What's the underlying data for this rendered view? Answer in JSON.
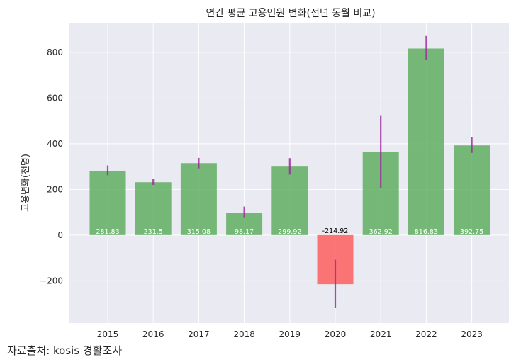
{
  "chart_data": {
    "type": "bar",
    "title": "연간 평균 고용인원 변화(전년 동월 비교)",
    "xlabel": "",
    "ylabel": "고용변화(천명)",
    "categories": [
      "2015",
      "2016",
      "2017",
      "2018",
      "2019",
      "2020",
      "2021",
      "2022",
      "2023"
    ],
    "values": [
      281.83,
      231.5,
      315.08,
      98.17,
      299.92,
      -214.92,
      362.92,
      816.83,
      392.75
    ],
    "value_labels": [
      "281.83",
      "231.5",
      "315.08",
      "98.17",
      "299.92",
      "-214.92",
      "362.92",
      "816.83",
      "392.75"
    ],
    "error_low": [
      262,
      220,
      292,
      75,
      265,
      -320,
      205,
      768,
      360
    ],
    "error_high": [
      305,
      245,
      338,
      125,
      337,
      -108,
      522,
      872,
      428
    ],
    "ylim": [
      -385,
      930
    ],
    "yticks": [
      -200,
      0,
      200,
      400,
      600,
      800
    ],
    "ytick_labels": [
      "−200",
      "0",
      "200",
      "400",
      "600",
      "800"
    ],
    "grid": true,
    "colors": {
      "positive": "#4ca64c",
      "negative": "#ff4c4c",
      "errorbar": "#9b2c9b",
      "plot_bg": "#eaeaf2",
      "grid": "#ffffff"
    }
  },
  "source_note": "자료출처: kosis 경활조사"
}
